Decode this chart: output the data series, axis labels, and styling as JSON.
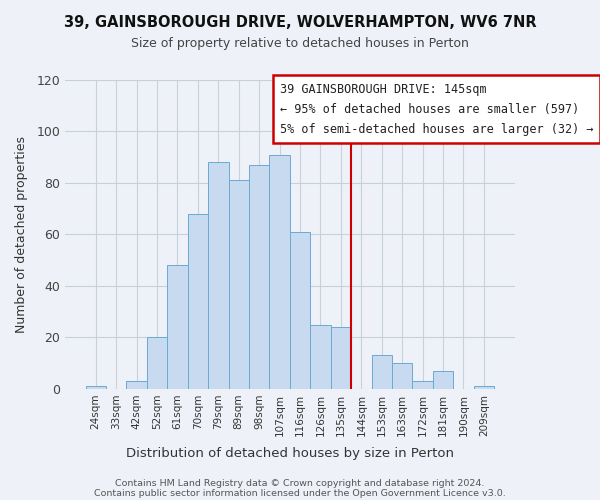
{
  "title": "39, GAINSBOROUGH DRIVE, WOLVERHAMPTON, WV6 7NR",
  "subtitle": "Size of property relative to detached houses in Perton",
  "xlabel": "Distribution of detached houses by size in Perton",
  "ylabel": "Number of detached properties",
  "footer1": "Contains HM Land Registry data © Crown copyright and database right 2024.",
  "footer2": "Contains public sector information licensed under the Open Government Licence v3.0.",
  "bin_labels": [
    "24sqm",
    "33sqm",
    "42sqm",
    "52sqm",
    "61sqm",
    "70sqm",
    "79sqm",
    "89sqm",
    "98sqm",
    "107sqm",
    "116sqm",
    "126sqm",
    "135sqm",
    "144sqm",
    "153sqm",
    "163sqm",
    "172sqm",
    "181sqm",
    "190sqm",
    "209sqm"
  ],
  "bar_heights": [
    1,
    0,
    3,
    20,
    48,
    68,
    88,
    81,
    87,
    91,
    61,
    25,
    24,
    0,
    13,
    10,
    3,
    7,
    0,
    1
  ],
  "bar_color_left": "#c8daf0",
  "bar_edge_color": "#6aaad4",
  "vline_x_index": 13,
  "vline_color": "#cc0000",
  "annotation_box_text": "39 GAINSBOROUGH DRIVE: 145sqm\n← 95% of detached houses are smaller (597)\n5% of semi-detached houses are larger (32) →",
  "ylim": [
    0,
    120
  ],
  "yticks": [
    0,
    20,
    40,
    60,
    80,
    100,
    120
  ],
  "background_color": "#eef2f8",
  "grid_color": "#c8d0dc"
}
